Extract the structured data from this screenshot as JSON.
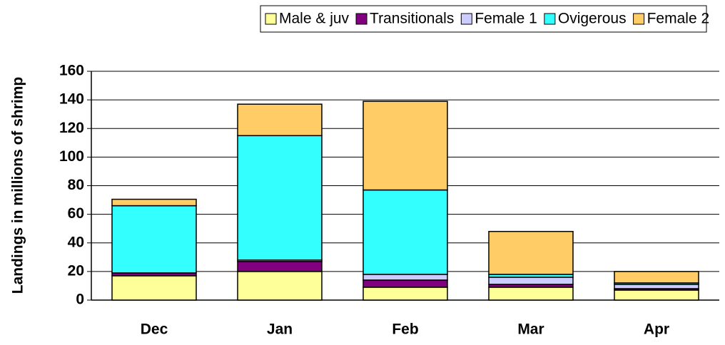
{
  "chart_data": {
    "type": "stacked_bar",
    "y_label": "Landings in millions of shrimp",
    "categories": [
      "Dec",
      "Jan",
      "Feb",
      "Mar",
      "Apr"
    ],
    "series": [
      {
        "name": "Male & juv",
        "color": "#ffff99",
        "values": [
          17,
          20,
          9,
          9,
          7
        ]
      },
      {
        "name": "Transitionals",
        "color": "#800080",
        "values": [
          2,
          7,
          5,
          2,
          1
        ]
      },
      {
        "name": "Female 1",
        "color": "#ccccff",
        "values": [
          0,
          1,
          4,
          5,
          3
        ]
      },
      {
        "name": "Ovigerous",
        "color": "#33ffff",
        "values": [
          47,
          87,
          59,
          2,
          1
        ]
      },
      {
        "name": "Female 2",
        "color": "#ffcc66",
        "values": [
          4.5,
          22,
          62,
          30,
          8
        ]
      }
    ],
    "ylim": [
      0,
      160
    ],
    "yticks": [
      0,
      20,
      40,
      60,
      80,
      100,
      120,
      140,
      160
    ],
    "grid": true,
    "legend": "top"
  }
}
